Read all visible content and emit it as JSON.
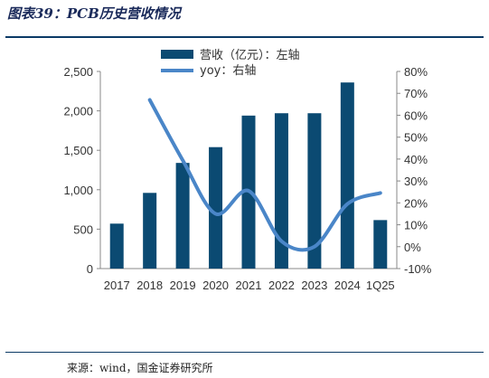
{
  "figure_title": "图表39：PCB历史营收情况",
  "source": "来源：wind，国金证券研究所",
  "colors": {
    "bar": "#0b4a72",
    "line": "#4a86c8",
    "rule": "#0b3a66"
  },
  "chart_data": {
    "type": "bar+line",
    "categories": [
      "2017",
      "2018",
      "2019",
      "2020",
      "2021",
      "2022",
      "2023",
      "2024",
      "1Q25"
    ],
    "series": [
      {
        "name": "营收（亿元）：左轴",
        "type": "bar",
        "axis": "left",
        "values": [
          570,
          960,
          1340,
          1540,
          1940,
          1970,
          1970,
          2360,
          615
        ]
      },
      {
        "name": "yoy：右轴",
        "type": "line",
        "axis": "right",
        "values": [
          null,
          67.0,
          39.5,
          15.0,
          25.5,
          2.5,
          0.0,
          19.5,
          24.5
        ]
      }
    ],
    "y_left": {
      "ylim": [
        0,
        2500
      ],
      "ticks": [
        "0",
        "500",
        "1,000",
        "1,500",
        "2,000",
        "2,500"
      ]
    },
    "y_right": {
      "ylim": [
        -10,
        80
      ],
      "ticks": [
        "-10%",
        "0%",
        "10%",
        "20%",
        "30%",
        "40%",
        "50%",
        "60%",
        "70%",
        "80%"
      ]
    },
    "legend_position": "top-center",
    "grid": false
  }
}
